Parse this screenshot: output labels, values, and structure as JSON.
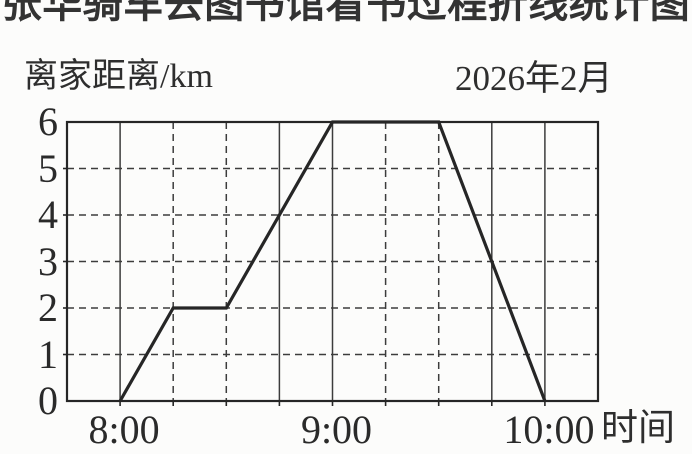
{
  "page": {
    "title": "张华骑车去图书馆看书过程折线统计图",
    "ink_color": "#2b2b2b",
    "background": "#fcfcfb"
  },
  "chart_data": {
    "type": "line",
    "title": "张华骑车去图书馆看书过程折线统计图",
    "ylabel": "离家距离/km",
    "xlabel": "时间",
    "annotation": "2026年2月",
    "grid": true,
    "line_color": "#262626",
    "x_axis": {
      "start_time": "7:45",
      "end_time": "10:15",
      "gridline_interval_minutes": 15,
      "tick_labels": [
        {
          "label": "8:00",
          "time": "8:00"
        },
        {
          "label": "9:00",
          "time": "9:00"
        },
        {
          "label": "10:00",
          "time": "10:00"
        }
      ]
    },
    "y_axis": {
      "min": 0,
      "max": 6,
      "tick_step": 1,
      "tick_labels": [
        "0",
        "1",
        "2",
        "3",
        "4",
        "5",
        "6"
      ]
    },
    "series": [
      {
        "name": "distance-from-home-km",
        "points": [
          {
            "time": "8:00",
            "km": 0
          },
          {
            "time": "8:15",
            "km": 2
          },
          {
            "time": "8:30",
            "km": 2
          },
          {
            "time": "9:00",
            "km": 6
          },
          {
            "time": "9:30",
            "km": 6
          },
          {
            "time": "10:00",
            "km": 0
          }
        ]
      }
    ]
  }
}
